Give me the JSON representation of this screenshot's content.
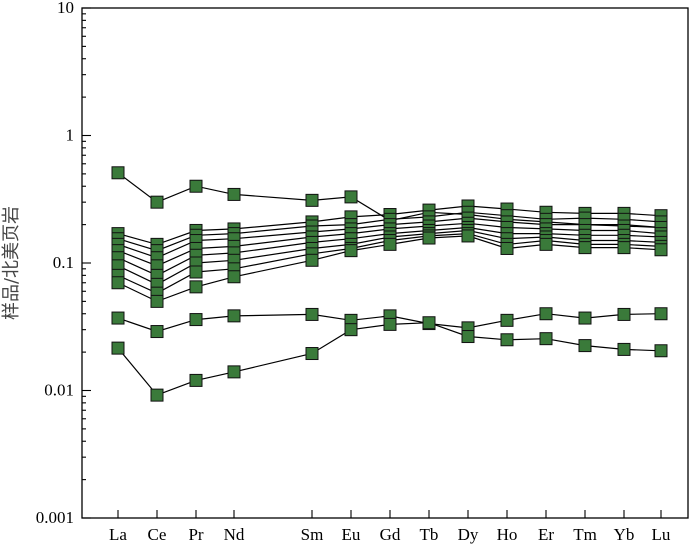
{
  "chart_data": {
    "type": "line",
    "title": "",
    "xlabel": "",
    "ylabel": "样品/北美页岩",
    "y_scale": "log",
    "ylim": [
      0.001,
      10
    ],
    "y_ticks": [
      "10",
      "1",
      "0.1",
      "0.01",
      "0.001"
    ],
    "grid": false,
    "marker_color": "#3a7a3a",
    "line_color": "#000000",
    "categories": [
      "La",
      "Ce",
      "Pr",
      "Nd",
      "Sm",
      "Eu",
      "Gd",
      "Tb",
      "Dy",
      "Ho",
      "Er",
      "Tm",
      "Yb",
      "Lu"
    ],
    "series": [
      {
        "values": [
          0.51,
          0.3,
          0.4,
          0.345,
          0.31,
          0.33,
          0.215,
          0.25,
          0.24,
          0.22,
          0.21,
          0.2,
          0.2,
          0.19
        ]
      },
      {
        "values": [
          0.17,
          0.14,
          0.18,
          0.185,
          0.21,
          0.23,
          0.24,
          0.26,
          0.28,
          0.265,
          0.25,
          0.245,
          0.245,
          0.235
        ]
      },
      {
        "values": [
          0.155,
          0.125,
          0.165,
          0.17,
          0.195,
          0.2,
          0.22,
          0.23,
          0.25,
          0.235,
          0.22,
          0.225,
          0.22,
          0.21
        ]
      },
      {
        "values": [
          0.14,
          0.11,
          0.15,
          0.155,
          0.175,
          0.185,
          0.2,
          0.21,
          0.225,
          0.21,
          0.2,
          0.2,
          0.195,
          0.19
        ]
      },
      {
        "values": [
          0.125,
          0.095,
          0.13,
          0.135,
          0.16,
          0.17,
          0.185,
          0.195,
          0.205,
          0.19,
          0.185,
          0.18,
          0.18,
          0.17
        ]
      },
      {
        "values": [
          0.11,
          0.08,
          0.115,
          0.12,
          0.145,
          0.155,
          0.17,
          0.18,
          0.19,
          0.17,
          0.17,
          0.165,
          0.165,
          0.16
        ]
      },
      {
        "values": [
          0.095,
          0.068,
          0.1,
          0.105,
          0.13,
          0.14,
          0.16,
          0.17,
          0.18,
          0.155,
          0.16,
          0.15,
          0.15,
          0.145
        ]
      },
      {
        "values": [
          0.08,
          0.058,
          0.085,
          0.09,
          0.118,
          0.13,
          0.15,
          0.163,
          0.17,
          0.14,
          0.15,
          0.14,
          0.14,
          0.135
        ]
      },
      {
        "values": [
          0.07,
          0.05,
          0.065,
          0.078,
          0.105,
          0.125,
          0.14,
          0.157,
          0.163,
          0.13,
          0.14,
          0.132,
          0.132,
          0.127
        ]
      },
      {
        "values": [
          0.037,
          0.029,
          0.036,
          0.0385,
          0.0395,
          0.0355,
          0.0385,
          0.0335,
          0.031,
          0.0355,
          0.04,
          0.037,
          0.0395,
          0.04
        ]
      },
      {
        "values": [
          0.0215,
          0.0092,
          0.012,
          0.014,
          0.0195,
          0.03,
          0.033,
          0.034,
          0.0265,
          0.025,
          0.0255,
          0.0225,
          0.021,
          0.0205
        ]
      }
    ]
  }
}
